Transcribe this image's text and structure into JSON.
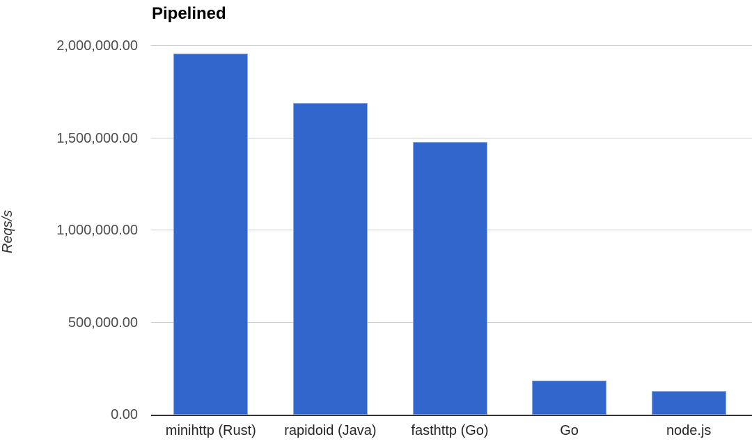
{
  "chart_data": {
    "type": "bar",
    "title": "Pipelined",
    "xlabel": "",
    "ylabel": "Reqs/s",
    "categories": [
      "minihttp (Rust)",
      "rapidoid (Java)",
      "fasthttp (Go)",
      "Go",
      "node.js"
    ],
    "values": [
      1960000,
      1690000,
      1480000,
      185000,
      130000
    ],
    "ylim": [
      0,
      2000000
    ],
    "ytick_step": 500000,
    "yticks": [
      {
        "value": 0,
        "label": "0.00"
      },
      {
        "value": 500000,
        "label": "500,000.00"
      },
      {
        "value": 1000000,
        "label": "1,000,000.00"
      },
      {
        "value": 1500000,
        "label": "1,500,000.00"
      },
      {
        "value": 2000000,
        "label": "2,000,000.00"
      }
    ],
    "grid": true,
    "legend_position": "none",
    "colors": {
      "bar": "#3366cc",
      "gridline": "#cccccc",
      "baseline": "#333333",
      "tick_label": "#4d4d4d",
      "category_label": "#262626",
      "title": "#000000",
      "background": "#ffffff"
    }
  }
}
